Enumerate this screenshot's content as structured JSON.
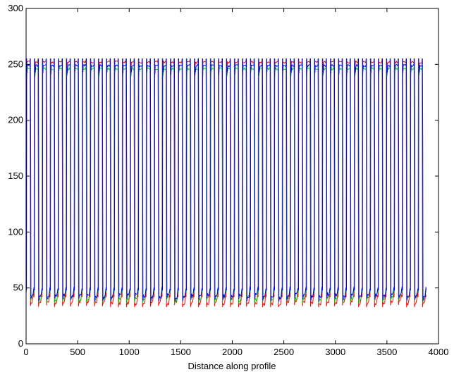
{
  "chart_data": {
    "type": "line",
    "title": "",
    "xlabel": "Distance along profile",
    "ylabel": "",
    "xlim": [
      0,
      4000
    ],
    "ylim": [
      0,
      300
    ],
    "xticks": [
      0,
      500,
      1000,
      1500,
      2000,
      2500,
      3000,
      3500,
      4000
    ],
    "yticks": [
      0,
      50,
      100,
      150,
      200,
      250,
      300
    ],
    "grid": false,
    "legend": "none",
    "x_range_of_data": [
      0,
      3880
    ],
    "period": 77.6,
    "cycles": 50,
    "series": [
      {
        "color": "#ff0000",
        "high_level": 252,
        "low_level": 37,
        "phase_shift": 0
      },
      {
        "color": "#00cc00",
        "high_level": 246,
        "low_level": 41,
        "phase_shift": 2
      },
      {
        "color": "#0000ff",
        "high_level": 249,
        "low_level": 43,
        "phase_shift": 4
      }
    ],
    "y_range_of_data": [
      33,
      255
    ]
  }
}
